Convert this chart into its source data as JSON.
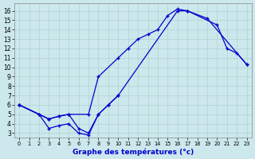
{
  "xlabel": "Graphe des températures (°c)",
  "line_color": "#0000cc",
  "bg_color": "#cce8ec",
  "grid_color": "#aacccc",
  "xlim": [
    -0.5,
    23.5
  ],
  "ylim": [
    2.5,
    16.8
  ],
  "yticks": [
    3,
    4,
    5,
    6,
    7,
    8,
    9,
    10,
    11,
    12,
    13,
    14,
    15,
    16
  ],
  "xticks": [
    0,
    1,
    2,
    3,
    4,
    5,
    6,
    7,
    8,
    9,
    10,
    11,
    12,
    13,
    14,
    15,
    16,
    17,
    18,
    19,
    20,
    21,
    22,
    23
  ],
  "line1_x": [
    0,
    3,
    4,
    5,
    7,
    8,
    10,
    11,
    12,
    13,
    14,
    15,
    16,
    17,
    19,
    23
  ],
  "line1_y": [
    6,
    4.5,
    4.8,
    5,
    5.0,
    9.0,
    11.0,
    12.0,
    13.0,
    13.5,
    14.0,
    15.5,
    16.2,
    16.0,
    15.2,
    10.3
  ],
  "line2_x": [
    0,
    2,
    3,
    4,
    5,
    6,
    7,
    8,
    9,
    10,
    16,
    17,
    20,
    21,
    22,
    23
  ],
  "line2_y": [
    6,
    5,
    4.5,
    4.8,
    5,
    3.5,
    3.0,
    5,
    6,
    7,
    16.0,
    16.0,
    14.5,
    12.0,
    11.5,
    10.3
  ],
  "line3_x": [
    0,
    2,
    3,
    4,
    5,
    6,
    7,
    8,
    9,
    10
  ],
  "line3_y": [
    6,
    5,
    3.5,
    3.8,
    4.0,
    3.0,
    2.8,
    5.0,
    6.0,
    7.0
  ]
}
